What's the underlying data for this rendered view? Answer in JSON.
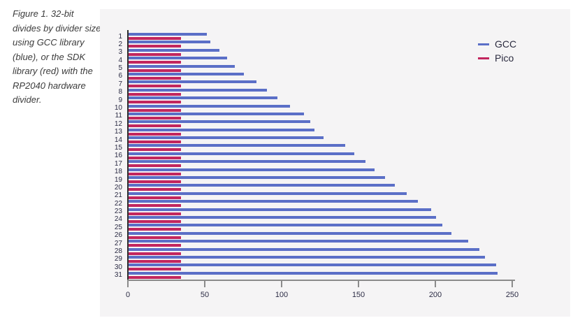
{
  "caption": {
    "text": "Figure 1. 32-bit divides by divider size using GCC library (blue), or the SDK library (red) with the RP2040 hardware divider."
  },
  "chart_data": {
    "type": "bar",
    "orientation": "horizontal",
    "title": "",
    "xlabel": "",
    "ylabel": "",
    "categories": [
      1,
      2,
      3,
      4,
      5,
      6,
      7,
      8,
      9,
      10,
      11,
      12,
      13,
      14,
      15,
      16,
      17,
      18,
      19,
      20,
      21,
      22,
      23,
      24,
      25,
      26,
      27,
      28,
      29,
      30,
      31
    ],
    "series": [
      {
        "name": "GCC",
        "color": "#5B6FC7",
        "values": [
          51,
          53,
          59,
          64,
          69,
          75,
          83,
          90,
          97,
          105,
          114,
          118,
          121,
          127,
          141,
          147,
          154,
          160,
          167,
          173,
          181,
          188,
          197,
          200,
          204,
          210,
          221,
          228,
          232,
          239,
          240
        ]
      },
      {
        "name": "Pico",
        "color": "#C2265E",
        "values": [
          34,
          34,
          34,
          34,
          34,
          34,
          34,
          34,
          34,
          34,
          34,
          34,
          34,
          34,
          34,
          34,
          34,
          34,
          34,
          34,
          34,
          34,
          34,
          34,
          34,
          34,
          34,
          34,
          34,
          34,
          34
        ]
      }
    ],
    "xlim": [
      0,
      250
    ],
    "x_ticks": [
      0,
      50,
      100,
      150,
      200,
      250
    ],
    "legend": [
      "GCC",
      "Pico"
    ],
    "legend_position": "top-right",
    "grid": false,
    "panel_background": "#F5F4F5",
    "x_axis_color": "#8B8B8B",
    "y_axis_line_color": "#2F2F2F",
    "tick_label_color": "#2B2B44"
  }
}
